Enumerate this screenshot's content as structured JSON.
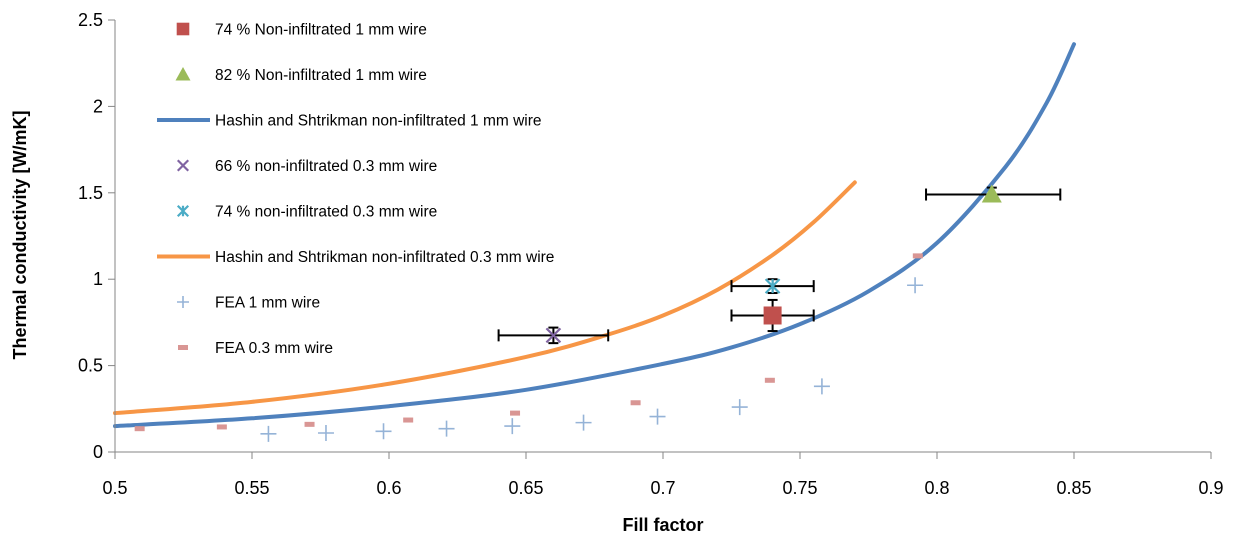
{
  "colors": {
    "axis": "#868686",
    "red_square": "#C0504D",
    "green_triangle": "#9BBB59",
    "purple_x": "#8064A2",
    "teal_star": "#4BACC6",
    "hs_1mm": "#4F81BD",
    "hs_03mm": "#F79646",
    "fea_1mm": "#95B3D7",
    "fea_03mm": "#D99694",
    "error_bar": "#000000"
  },
  "chart_data": {
    "type": "scatter",
    "xlabel": "Fill factor",
    "ylabel": "Thermal conductivity [W/mK]",
    "xlim": [
      0.5,
      0.9
    ],
    "ylim": [
      0,
      2.5
    ],
    "xticks": [
      0.5,
      0.55,
      0.6,
      0.65,
      0.7,
      0.75,
      0.8,
      0.85,
      0.9
    ],
    "xtick_labels": [
      "0.5",
      "0.55",
      "0.6",
      "0.65",
      "0.7",
      "0.75",
      "0.8",
      "0.85",
      "0.9"
    ],
    "yticks": [
      0,
      0.5,
      1,
      1.5,
      2,
      2.5
    ],
    "ytick_labels": [
      "0",
      "0.5",
      "1",
      "1.5",
      "2",
      "2.5"
    ],
    "grid": false,
    "legend_position": "top-left",
    "series": [
      {
        "name": "74 % Non-infiltrated 1 mm wire",
        "kind": "marker",
        "marker": "square",
        "color_key": "red_square",
        "points": [
          {
            "x": 0.74,
            "y": 0.79,
            "xerr": [
              0.725,
              0.755
            ],
            "yerr": [
              0.7,
              0.88
            ]
          }
        ]
      },
      {
        "name": "82 % Non-infiltrated 1 mm wire",
        "kind": "marker",
        "marker": "triangle",
        "color_key": "green_triangle",
        "points": [
          {
            "x": 0.82,
            "y": 1.49,
            "xerr": [
              0.796,
              0.845
            ],
            "yerr": [
              1.45,
              1.53
            ]
          }
        ]
      },
      {
        "name": "Hashin and Shtrikman non-infiltrated 1 mm wire",
        "kind": "line",
        "color_key": "hs_1mm",
        "points": [
          {
            "x": 0.5,
            "y": 0.15
          },
          {
            "x": 0.55,
            "y": 0.195
          },
          {
            "x": 0.6,
            "y": 0.265
          },
          {
            "x": 0.65,
            "y": 0.36
          },
          {
            "x": 0.7,
            "y": 0.51
          },
          {
            "x": 0.725,
            "y": 0.605
          },
          {
            "x": 0.75,
            "y": 0.74
          },
          {
            "x": 0.775,
            "y": 0.93
          },
          {
            "x": 0.8,
            "y": 1.21
          },
          {
            "x": 0.825,
            "y": 1.65
          },
          {
            "x": 0.84,
            "y": 2.02
          },
          {
            "x": 0.85,
            "y": 2.36
          }
        ]
      },
      {
        "name": "66 % non-infiltrated 0.3 mm wire",
        "kind": "marker",
        "marker": "x",
        "color_key": "purple_x",
        "points": [
          {
            "x": 0.66,
            "y": 0.675,
            "xerr": [
              0.64,
              0.68
            ],
            "yerr": [
              0.63,
              0.72
            ]
          }
        ]
      },
      {
        "name": "74 % non-infiltrated 0.3 mm wire",
        "kind": "marker",
        "marker": "star",
        "color_key": "teal_star",
        "points": [
          {
            "x": 0.74,
            "y": 0.96,
            "xerr": [
              0.725,
              0.755
            ],
            "yerr": [
              0.92,
              1.0
            ]
          }
        ]
      },
      {
        "name": "Hashin and Shtrikman non-infiltrated 0.3 mm wire",
        "kind": "line",
        "color_key": "hs_03mm",
        "points": [
          {
            "x": 0.5,
            "y": 0.225
          },
          {
            "x": 0.55,
            "y": 0.29
          },
          {
            "x": 0.6,
            "y": 0.395
          },
          {
            "x": 0.65,
            "y": 0.55
          },
          {
            "x": 0.68,
            "y": 0.68
          },
          {
            "x": 0.7,
            "y": 0.79
          },
          {
            "x": 0.72,
            "y": 0.94
          },
          {
            "x": 0.74,
            "y": 1.14
          },
          {
            "x": 0.755,
            "y": 1.33
          },
          {
            "x": 0.77,
            "y": 1.56
          }
        ]
      },
      {
        "name": "FEA 1 mm wire",
        "kind": "marker",
        "marker": "plus",
        "color_key": "fea_1mm",
        "points": [
          {
            "x": 0.556,
            "y": 0.105
          },
          {
            "x": 0.577,
            "y": 0.11
          },
          {
            "x": 0.598,
            "y": 0.12
          },
          {
            "x": 0.621,
            "y": 0.135
          },
          {
            "x": 0.645,
            "y": 0.15
          },
          {
            "x": 0.671,
            "y": 0.17
          },
          {
            "x": 0.698,
            "y": 0.205
          },
          {
            "x": 0.728,
            "y": 0.26
          },
          {
            "x": 0.758,
            "y": 0.38
          },
          {
            "x": 0.792,
            "y": 0.965
          }
        ]
      },
      {
        "name": "FEA 0.3 mm wire",
        "kind": "marker",
        "marker": "dash",
        "color_key": "fea_03mm",
        "points": [
          {
            "x": 0.509,
            "y": 0.135
          },
          {
            "x": 0.539,
            "y": 0.145
          },
          {
            "x": 0.571,
            "y": 0.16
          },
          {
            "x": 0.607,
            "y": 0.185
          },
          {
            "x": 0.646,
            "y": 0.225
          },
          {
            "x": 0.69,
            "y": 0.285
          },
          {
            "x": 0.739,
            "y": 0.415
          },
          {
            "x": 0.793,
            "y": 1.135
          }
        ]
      }
    ]
  }
}
